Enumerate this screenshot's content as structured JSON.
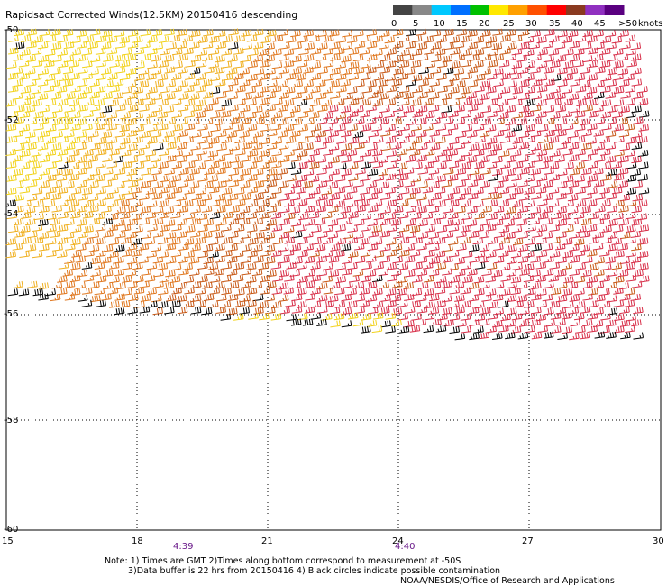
{
  "title": "Rapidsact Corrected Winds(12.5KM) 20150416 descending",
  "legend": {
    "unit_label": "knots",
    "labels": [
      "0",
      "5",
      "10",
      "15",
      "20",
      "25",
      "30",
      "35",
      "40",
      "45",
      ">50"
    ],
    "colors": [
      "#444444",
      "#888888",
      "#00c8ff",
      "#0070ff",
      "#00c000",
      "#ffe800",
      "#ffa000",
      "#ff5000",
      "#ff0000",
      "#8a3a20",
      "#9030c0",
      "#5a0080"
    ]
  },
  "axes": {
    "x_labels": [
      "15",
      "18",
      "21",
      "24",
      "27",
      "30"
    ],
    "y_labels": [
      "-50",
      "-52",
      "-54",
      "-56",
      "-58",
      "-60"
    ]
  },
  "times": [
    "4:39",
    "4:40"
  ],
  "notes": {
    "line1": "Note: 1) Times are GMT 2)Times along bottom correspond to measurement at -50S",
    "line2": "3)Data buffer is 22 hrs from 20150416 4) Black circles indicate possible contamination",
    "line3": "NOAA/NESDIS/Office of Research and Applications"
  },
  "barb_colors": {
    "yellow": "#f2d21a",
    "light_orange": "#f0b020",
    "orange": "#e07820",
    "dark_orange": "#c85a18",
    "red": "#d8304a",
    "black": "#000000"
  }
}
